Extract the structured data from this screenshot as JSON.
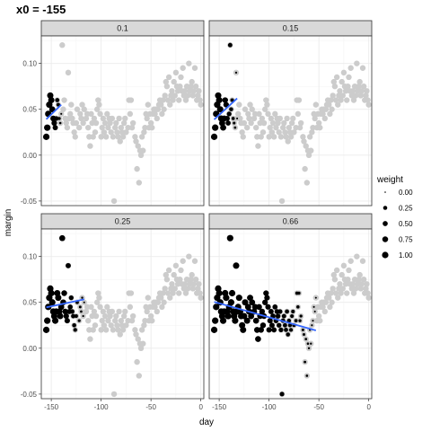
{
  "title": "x0 =  -155",
  "chart_data": {
    "type": "scatter",
    "xlabel": "day",
    "ylabel": "margin",
    "xlim": [
      -160,
      3
    ],
    "ylim": [
      -0.055,
      0.13
    ],
    "x_ticks": [
      -150,
      -100,
      -50,
      0
    ],
    "x_tick_labels": [
      "-150",
      "-100",
      "-50",
      "0"
    ],
    "y_ticks": [
      -0.05,
      0.0,
      0.05,
      0.1
    ],
    "y_tick_labels": [
      "-0.05",
      "0.00",
      "0.05",
      "0.10"
    ],
    "grid": true,
    "background_points_color": "#cccccc",
    "weighted_points_color": "#000000",
    "fit_line_color": "#3366ff",
    "points": [
      [
        -155,
        0.02
      ],
      [
        -154,
        0.03
      ],
      [
        -153,
        0.045
      ],
      [
        -152,
        0.055
      ],
      [
        -151,
        0.065
      ],
      [
        -150,
        0.06
      ],
      [
        -149,
        0.05
      ],
      [
        -148,
        0.04
      ],
      [
        -147,
        0.035
      ],
      [
        -146,
        0.03
      ],
      [
        -145,
        0.04
      ],
      [
        -144,
        0.06
      ],
      [
        -143,
        0.055
      ],
      [
        -142,
        0.04
      ],
      [
        -141,
        0.035
      ],
      [
        -140,
        0.045
      ],
      [
        -139,
        0.12
      ],
      [
        -138,
        0.05
      ],
      [
        -137,
        0.06
      ],
      [
        -136,
        0.04
      ],
      [
        -135,
        0.035
      ],
      [
        -134,
        0.03
      ],
      [
        -133,
        0.09
      ],
      [
        -132,
        0.04
      ],
      [
        -131,
        0.045
      ],
      [
        -130,
        0.055
      ],
      [
        -129,
        0.04
      ],
      [
        -128,
        0.035
      ],
      [
        -127,
        0.025
      ],
      [
        -126,
        0.02
      ],
      [
        -125,
        0.035
      ],
      [
        -124,
        0.05
      ],
      [
        -122,
        0.03
      ],
      [
        -121,
        0.045
      ],
      [
        -120,
        0.04
      ],
      [
        -119,
        0.055
      ],
      [
        -118,
        0.035
      ],
      [
        -117,
        0.05
      ],
      [
        -115,
        0.04
      ],
      [
        -114,
        0.045
      ],
      [
        -113,
        0.03
      ],
      [
        -112,
        0.02
      ],
      [
        -111,
        0.01
      ],
      [
        -110,
        0.045
      ],
      [
        -109,
        0.035
      ],
      [
        -108,
        0.02
      ],
      [
        -107,
        0.04
      ],
      [
        -106,
        0.025
      ],
      [
        -105,
        0.035
      ],
      [
        -104,
        0.05
      ],
      [
        -103,
        0.06
      ],
      [
        -102,
        0.055
      ],
      [
        -101,
        0.045
      ],
      [
        -100,
        0.02
      ],
      [
        -99,
        0.03
      ],
      [
        -98,
        0.04
      ],
      [
        -97,
        0.025
      ],
      [
        -96,
        0.035
      ],
      [
        -95,
        0.02
      ],
      [
        -94,
        0.045
      ],
      [
        -93,
        0.03
      ],
      [
        -92,
        0.04
      ],
      [
        -91,
        0.035
      ],
      [
        -90,
        0.025
      ],
      [
        -89,
        0.04
      ],
      [
        -88,
        0.02
      ],
      [
        -87,
        -0.05
      ],
      [
        -86,
        0.03
      ],
      [
        -85,
        0.035
      ],
      [
        -84,
        0.025
      ],
      [
        -83,
        0.02
      ],
      [
        -82,
        0.04
      ],
      [
        -81,
        0.015
      ],
      [
        -80,
        0.03
      ],
      [
        -79,
        0.025
      ],
      [
        -78,
        0.02
      ],
      [
        -77,
        0.035
      ],
      [
        -76,
        0.04
      ],
      [
        -75,
        0.025
      ],
      [
        -73,
        0.03
      ],
      [
        -72,
        0.06
      ],
      [
        -71,
        0.045
      ],
      [
        -70,
        0.06
      ],
      [
        -69,
        0.03
      ],
      [
        -68,
        0.035
      ],
      [
        -66,
        0.02
      ],
      [
        -65,
        0.015
      ],
      [
        -64,
        -0.015
      ],
      [
        -63,
        0.01
      ],
      [
        -62,
        -0.03
      ],
      [
        -61,
        0.005
      ],
      [
        -60,
        0.0
      ],
      [
        -59,
        0.02
      ],
      [
        -58,
        0.005
      ],
      [
        -57,
        0.025
      ],
      [
        -56,
        0.03
      ],
      [
        -55,
        0.045
      ],
      [
        -54,
        0.04
      ],
      [
        -53,
        0.055
      ],
      [
        -52,
        0.03
      ],
      [
        -51,
        0.045
      ],
      [
        -50,
        0.035
      ],
      [
        -49,
        0.03
      ],
      [
        -48,
        0.045
      ],
      [
        -47,
        0.05
      ],
      [
        -46,
        0.045
      ],
      [
        -45,
        0.05
      ],
      [
        -44,
        0.04
      ],
      [
        -43,
        0.05
      ],
      [
        -42,
        0.055
      ],
      [
        -41,
        0.06
      ],
      [
        -40,
        0.055
      ],
      [
        -39,
        0.045
      ],
      [
        -38,
        0.06
      ],
      [
        -37,
        0.05
      ],
      [
        -36,
        0.065
      ],
      [
        -35,
        0.08
      ],
      [
        -34,
        0.075
      ],
      [
        -33,
        0.06
      ],
      [
        -32,
        0.085
      ],
      [
        -31,
        0.055
      ],
      [
        -30,
        0.065
      ],
      [
        -29,
        0.07
      ],
      [
        -28,
        0.06
      ],
      [
        -27,
        0.08
      ],
      [
        -26,
        0.065
      ],
      [
        -25,
        0.09
      ],
      [
        -24,
        0.075
      ],
      [
        -23,
        0.07
      ],
      [
        -22,
        0.06
      ],
      [
        -21,
        0.075
      ],
      [
        -20,
        0.085
      ],
      [
        -19,
        0.07
      ],
      [
        -18,
        0.095
      ],
      [
        -17,
        0.065
      ],
      [
        -16,
        0.07
      ],
      [
        -15,
        0.06
      ],
      [
        -14,
        0.075
      ],
      [
        -13,
        0.065
      ],
      [
        -12,
        0.1
      ],
      [
        -11,
        0.07
      ],
      [
        -10,
        0.075
      ],
      [
        -9,
        0.08
      ],
      [
        -8,
        0.065
      ],
      [
        -7,
        0.07
      ],
      [
        -6,
        0.095
      ],
      [
        -5,
        0.075
      ],
      [
        -4,
        0.06
      ],
      [
        -3,
        0.065
      ],
      [
        -2,
        0.07
      ],
      [
        -1,
        0.06
      ],
      [
        0,
        0.055
      ]
    ],
    "panels": [
      {
        "label": "0.1",
        "span": 0.1
      },
      {
        "label": "0.15",
        "span": 0.15
      },
      {
        "label": "0.25",
        "span": 0.25
      },
      {
        "label": "0.66",
        "span": 0.66
      }
    ],
    "legend": {
      "title": "weight",
      "position": "right",
      "entries": [
        {
          "label": "0.00",
          "value": 0.0
        },
        {
          "label": "0.25",
          "value": 0.25
        },
        {
          "label": "0.50",
          "value": 0.5
        },
        {
          "label": "0.75",
          "value": 0.75
        },
        {
          "label": "1.00",
          "value": 1.0
        }
      ]
    }
  }
}
